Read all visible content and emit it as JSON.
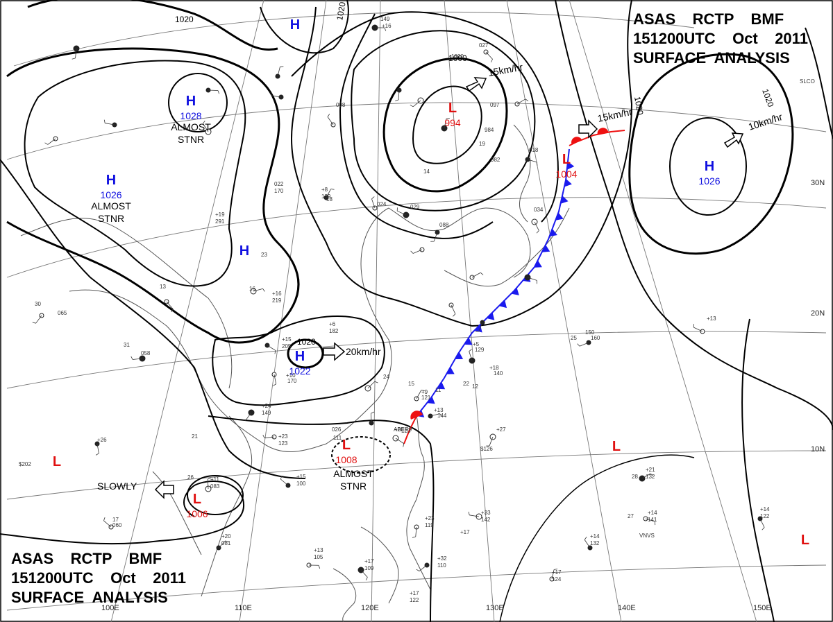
{
  "chart": {
    "title_lines": [
      "ASAS    RCTP    BMF",
      "151200UTC    Oct    2011",
      "SURFACE  ANALYSIS"
    ]
  },
  "longitudes": [
    "100E",
    "110E",
    "120E",
    "130E",
    "140E",
    "150E"
  ],
  "latitudes": [
    "30N",
    "20N",
    "10N"
  ],
  "isobar_labels": [
    "1020",
    "1020",
    "1000",
    "1020",
    "1020",
    "1020"
  ],
  "pressure_systems": [
    {
      "type": "H",
      "value": "1028",
      "note_lines": [
        "ALMOST",
        "STNR"
      ]
    },
    {
      "type": "H",
      "value": "1026",
      "note_lines": [
        "ALMOST",
        "STNR"
      ]
    },
    {
      "type": "H",
      "value": "",
      "note_lines": []
    },
    {
      "type": "H",
      "value": "",
      "note_lines": []
    },
    {
      "type": "H",
      "value": "1022",
      "note_lines": []
    },
    {
      "type": "L",
      "value": "994",
      "note_lines": []
    },
    {
      "type": "L",
      "value": "1004",
      "note_lines": []
    },
    {
      "type": "H",
      "value": "1026",
      "note_lines": []
    },
    {
      "type": "L",
      "value": "1008",
      "note_lines": [
        "ALMOST",
        "STNR"
      ]
    },
    {
      "type": "L",
      "value": "1006",
      "note_lines": []
    },
    {
      "type": "L",
      "value": "",
      "note_lines": []
    },
    {
      "type": "L",
      "value": "",
      "note_lines": []
    },
    {
      "type": "L",
      "value": "",
      "note_lines": []
    }
  ],
  "motion_labels": [
    "15km/hr",
    "15km/hr",
    "10km/hr",
    "20km/hr",
    "SLOWLY"
  ],
  "colors": {
    "high": "#1010e0",
    "low": "#e01010",
    "cold_front": "#1a1aee",
    "warm_front": "#ee1111",
    "isobar": "#000000",
    "coast": "#555555",
    "grid": "#777777"
  },
  "station_labels": [
    "149",
    "+16",
    "027",
    "1000",
    "022",
    "170",
    "+8",
    "139",
    "+19",
    "291",
    "+16",
    "219",
    "+6",
    "182",
    "+15",
    "205",
    "+10",
    "170",
    "+24",
    "149",
    "+23",
    "123",
    "+15",
    "100",
    "+11",
    "083",
    "+20",
    "081",
    "+13",
    "105",
    "+17",
    "109",
    "+17",
    "122",
    "+23",
    "119",
    "+32",
    "110",
    "+33",
    "142",
    "+14",
    "132",
    "+17",
    "124",
    "+14",
    "141",
    "+21",
    "132",
    "+14",
    "122",
    "+27",
    "150",
    "160",
    "+13",
    "+18",
    "140",
    "+5",
    "129",
    "+9",
    "121",
    "+13",
    "144",
    "+20",
    "123",
    "+26",
    "065",
    "058",
    "060",
    "098",
    "097",
    "984",
    "982",
    "018",
    "034",
    "088",
    "029",
    "024",
    "026",
    "111",
    "+17",
    "VNVS",
    "SLCO",
    "ABER9",
    "$126",
    "$202",
    "28",
    "27",
    "25",
    "22",
    "24",
    "30",
    "31",
    "13",
    "16",
    "21",
    "26",
    "17",
    "15",
    "11",
    "12",
    "19",
    "14",
    "18",
    "23"
  ]
}
